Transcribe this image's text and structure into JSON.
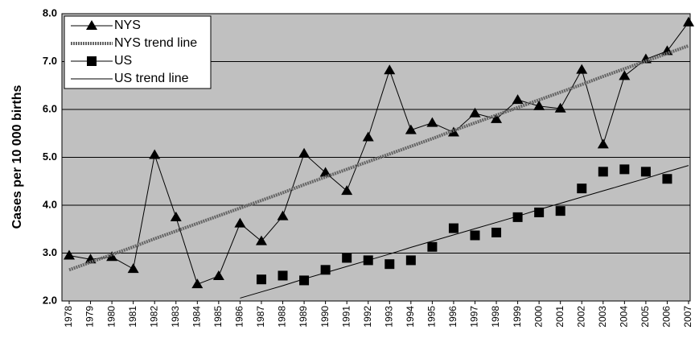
{
  "chart_data": {
    "type": "line",
    "y_label": "Cases per 10 000 births",
    "categories": [
      "1978",
      "1979",
      "1980",
      "1981",
      "1982",
      "1983",
      "1984",
      "1985",
      "1986",
      "1987",
      "1988",
      "1989",
      "1990",
      "1991",
      "1992",
      "1993",
      "1994",
      "1995",
      "1996",
      "1997",
      "1998",
      "1999",
      "2000",
      "2001",
      "2002",
      "2003",
      "2004",
      "2005",
      "2006",
      "2007"
    ],
    "series": [
      {
        "name": "NYS",
        "color": "#000000",
        "marker": "triangle",
        "width": 1,
        "values": [
          2.95,
          2.87,
          2.92,
          2.67,
          5.05,
          3.75,
          2.35,
          2.52,
          3.62,
          3.25,
          3.77,
          5.08,
          4.68,
          4.3,
          5.42,
          6.82,
          5.57,
          5.72,
          5.52,
          5.92,
          5.8,
          6.2,
          6.07,
          6.02,
          6.83,
          5.27,
          6.7,
          7.05,
          7.22,
          7.82
        ]
      },
      {
        "name": "NYS trend line",
        "color": "#666666",
        "marker": "none",
        "width": 4,
        "values": [
          2.65,
          2.81,
          2.97,
          3.13,
          3.3,
          3.46,
          3.62,
          3.78,
          3.94,
          4.1,
          4.26,
          4.43,
          4.59,
          4.75,
          4.91,
          5.07,
          5.23,
          5.39,
          5.56,
          5.72,
          5.88,
          6.04,
          6.2,
          6.36,
          6.52,
          6.69,
          6.85,
          7.01,
          7.17,
          7.33
        ]
      },
      {
        "name": "US",
        "color": "#000000",
        "marker": "square",
        "width": 1,
        "values": [
          null,
          null,
          null,
          null,
          null,
          null,
          null,
          null,
          null,
          2.45,
          2.53,
          2.43,
          2.65,
          2.9,
          2.85,
          2.77,
          2.85,
          3.13,
          3.52,
          3.37,
          3.43,
          3.75,
          3.85,
          3.88,
          4.35,
          4.7,
          4.75,
          4.7,
          4.55,
          null
        ],
        "line": false
      },
      {
        "name": "US trend line",
        "color": "#000000",
        "marker": "none",
        "width": 1,
        "values": [
          null,
          null,
          null,
          null,
          null,
          null,
          null,
          null,
          2.06,
          2.19,
          2.32,
          2.46,
          2.59,
          2.72,
          2.85,
          2.98,
          3.12,
          3.25,
          3.38,
          3.51,
          3.64,
          3.77,
          3.91,
          4.04,
          4.17,
          4.3,
          4.43,
          4.56,
          4.7,
          4.83
        ]
      }
    ],
    "ylim": [
      2,
      8
    ],
    "yticks": [
      {
        "value": 2,
        "label": "2.0"
      },
      {
        "value": 3,
        "label": "3.0"
      },
      {
        "value": 4,
        "label": "4.0"
      },
      {
        "value": 5,
        "label": "5.0"
      },
      {
        "value": 6,
        "label": "6.0"
      },
      {
        "value": 7,
        "label": "7.0"
      },
      {
        "value": 8,
        "label": "8.0"
      }
    ],
    "grid": true,
    "background": "#c0c0c0",
    "legend": "upper left"
  }
}
